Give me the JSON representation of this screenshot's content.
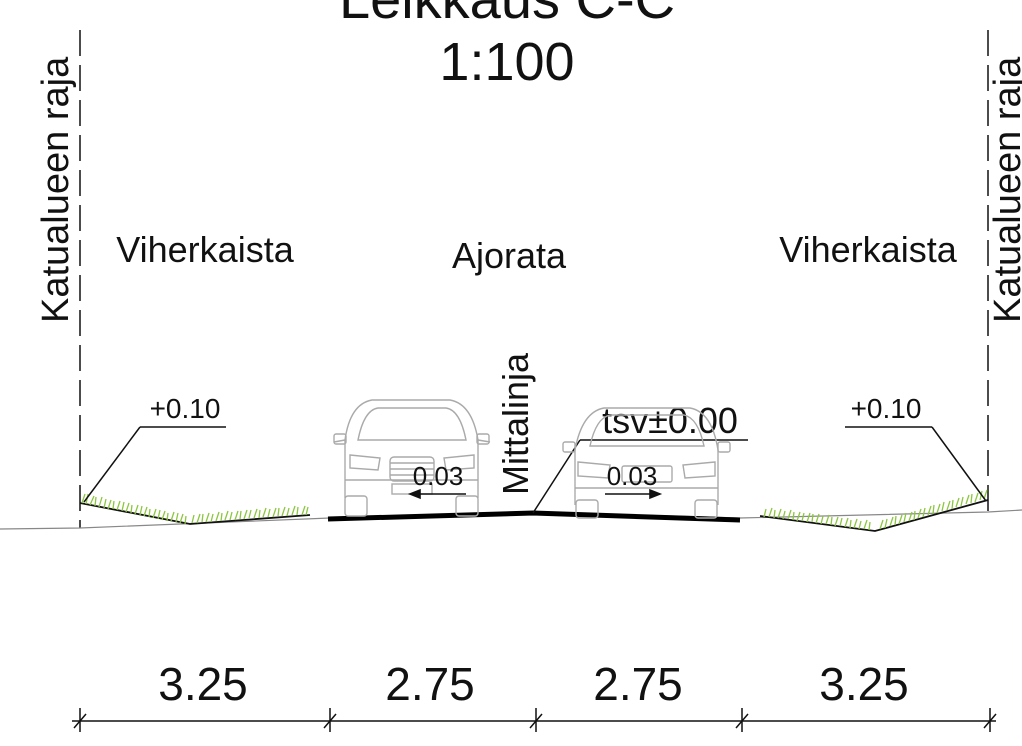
{
  "title": {
    "main": "Leikkaus C-C",
    "scale": "1:100"
  },
  "boundaries": {
    "left_label": "Katualueen raja",
    "right_label": "Katualueen raja"
  },
  "zones": {
    "left_green": "Viherkaista",
    "roadway": "Ajorata",
    "right_green": "Viherkaista"
  },
  "centerline": {
    "label": "Mittalinja",
    "elevation": "tsv±0.00"
  },
  "levels": {
    "left": "+0.10",
    "right": "+0.10"
  },
  "slopes": {
    "left": "0.03",
    "right": "0.03"
  },
  "dimensions": [
    "3.25",
    "2.75",
    "2.75",
    "3.25"
  ],
  "colors": {
    "lines": "#111111",
    "ground": "#888888",
    "grass": "#8cc63f",
    "car_outline": "#aaaaaa",
    "pavement": "#000000"
  },
  "icons": {
    "car_front": "car-front-icon",
    "car_rear": "car-rear-icon"
  }
}
